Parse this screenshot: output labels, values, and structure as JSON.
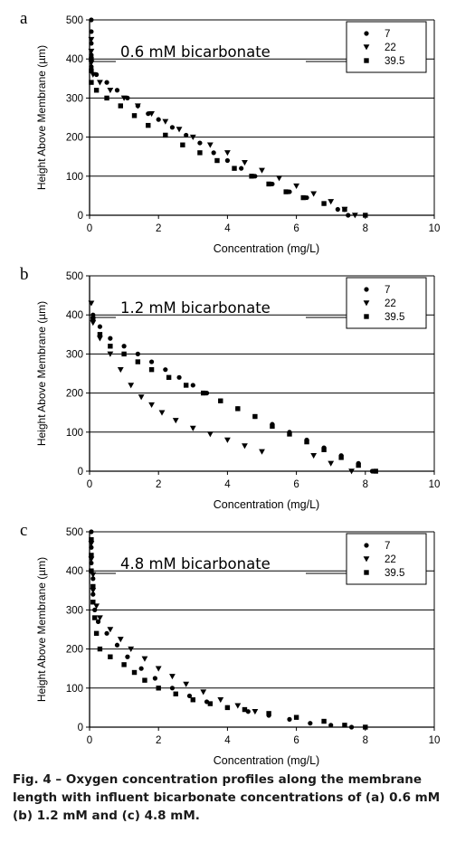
{
  "caption": {
    "label": "Fig. 4 – ",
    "text": "Oxygen concentration profiles along the membrane length with influent bicarbonate concentrations of (a) 0.6 mM (b) 1.2 mM and (c) 4.8 mM."
  },
  "chart_data": [
    {
      "type": "scatter",
      "panel": "a",
      "annotation": "0.6 mM bicarbonate",
      "xlabel": "Concentration (mg/L)",
      "ylabel": "Height Above Membrane (µm)",
      "xlim": [
        0,
        10
      ],
      "ylim": [
        0,
        500
      ],
      "xticks": [
        0,
        2,
        4,
        6,
        8,
        10
      ],
      "yticks": [
        0,
        100,
        200,
        300,
        400,
        500
      ],
      "grid": "horizontal",
      "legend_position": "top-right",
      "series": [
        {
          "name": "7",
          "marker": "circle",
          "points": [
            [
              0.05,
              500
            ],
            [
              0.05,
              470
            ],
            [
              0.05,
              440
            ],
            [
              0.05,
              410
            ],
            [
              0.05,
              380
            ],
            [
              0.2,
              360
            ],
            [
              0.5,
              340
            ],
            [
              0.8,
              320
            ],
            [
              1.1,
              300
            ],
            [
              1.4,
              280
            ],
            [
              1.7,
              260
            ],
            [
              2.0,
              245
            ],
            [
              2.4,
              225
            ],
            [
              2.8,
              205
            ],
            [
              3.2,
              185
            ],
            [
              3.6,
              160
            ],
            [
              4.0,
              140
            ],
            [
              4.4,
              120
            ],
            [
              4.8,
              100
            ],
            [
              5.3,
              80
            ],
            [
              5.8,
              60
            ],
            [
              6.3,
              45
            ],
            [
              6.8,
              30
            ],
            [
              7.2,
              15
            ],
            [
              7.5,
              0
            ]
          ]
        },
        {
          "name": "22",
          "marker": "triangle",
          "points": [
            [
              0.05,
              450
            ],
            [
              0.05,
              420
            ],
            [
              0.05,
              390
            ],
            [
              0.1,
              360
            ],
            [
              0.3,
              340
            ],
            [
              0.6,
              320
            ],
            [
              1.0,
              300
            ],
            [
              1.4,
              280
            ],
            [
              1.8,
              260
            ],
            [
              2.2,
              240
            ],
            [
              2.6,
              220
            ],
            [
              3.0,
              200
            ],
            [
              3.5,
              180
            ],
            [
              4.0,
              160
            ],
            [
              4.5,
              135
            ],
            [
              5.0,
              115
            ],
            [
              5.5,
              95
            ],
            [
              6.0,
              75
            ],
            [
              6.5,
              55
            ],
            [
              7.0,
              35
            ],
            [
              7.4,
              15
            ],
            [
              7.7,
              0
            ]
          ]
        },
        {
          "name": "39.5",
          "marker": "square",
          "points": [
            [
              0.05,
              400
            ],
            [
              0.05,
              370
            ],
            [
              0.05,
              340
            ],
            [
              0.2,
              320
            ],
            [
              0.5,
              300
            ],
            [
              0.9,
              280
            ],
            [
              1.3,
              255
            ],
            [
              1.7,
              230
            ],
            [
              2.2,
              205
            ],
            [
              2.7,
              180
            ],
            [
              3.2,
              160
            ],
            [
              3.7,
              140
            ],
            [
              4.2,
              120
            ],
            [
              4.7,
              100
            ],
            [
              5.2,
              80
            ],
            [
              5.7,
              60
            ],
            [
              6.2,
              45
            ],
            [
              6.8,
              30
            ],
            [
              7.4,
              15
            ],
            [
              8.0,
              0
            ]
          ]
        }
      ]
    },
    {
      "type": "scatter",
      "panel": "b",
      "annotation": "1.2 mM  bicarbonate",
      "xlabel": "Concentration (mg/L)",
      "ylabel": "Height Above Membrane (µm)",
      "xlim": [
        0,
        10
      ],
      "ylim": [
        0,
        500
      ],
      "xticks": [
        0,
        2,
        4,
        6,
        8,
        10
      ],
      "yticks": [
        0,
        100,
        200,
        300,
        400,
        500
      ],
      "grid": "horizontal",
      "legend_position": "top-right",
      "series": [
        {
          "name": "7",
          "marker": "circle",
          "points": [
            [
              0.1,
              400
            ],
            [
              0.3,
              370
            ],
            [
              0.6,
              340
            ],
            [
              1.0,
              320
            ],
            [
              1.4,
              300
            ],
            [
              1.8,
              280
            ],
            [
              2.2,
              260
            ],
            [
              2.6,
              240
            ],
            [
              3.0,
              220
            ],
            [
              3.4,
              200
            ],
            [
              3.8,
              180
            ],
            [
              4.3,
              160
            ],
            [
              4.8,
              140
            ],
            [
              5.3,
              120
            ],
            [
              5.8,
              100
            ],
            [
              6.3,
              80
            ],
            [
              6.8,
              60
            ],
            [
              7.3,
              40
            ],
            [
              7.8,
              20
            ],
            [
              8.2,
              0
            ]
          ]
        },
        {
          "name": "22",
          "marker": "triangle",
          "points": [
            [
              0.05,
              430
            ],
            [
              0.1,
              380
            ],
            [
              0.3,
              340
            ],
            [
              0.6,
              300
            ],
            [
              0.9,
              260
            ],
            [
              1.2,
              220
            ],
            [
              1.5,
              190
            ],
            [
              1.8,
              170
            ],
            [
              2.1,
              150
            ],
            [
              2.5,
              130
            ],
            [
              3.0,
              110
            ],
            [
              3.5,
              95
            ],
            [
              4.0,
              80
            ],
            [
              4.5,
              65
            ],
            [
              5.0,
              50
            ],
            [
              6.5,
              40
            ],
            [
              7.0,
              20
            ],
            [
              7.6,
              0
            ]
          ]
        },
        {
          "name": "39.5",
          "marker": "square",
          "points": [
            [
              0.1,
              390
            ],
            [
              0.3,
              350
            ],
            [
              0.6,
              320
            ],
            [
              1.0,
              300
            ],
            [
              1.4,
              280
            ],
            [
              1.8,
              260
            ],
            [
              2.3,
              240
            ],
            [
              2.8,
              220
            ],
            [
              3.3,
              200
            ],
            [
              3.8,
              180
            ],
            [
              4.3,
              160
            ],
            [
              4.8,
              140
            ],
            [
              5.3,
              115
            ],
            [
              5.8,
              95
            ],
            [
              6.3,
              75
            ],
            [
              6.8,
              55
            ],
            [
              7.3,
              35
            ],
            [
              7.8,
              15
            ],
            [
              8.3,
              0
            ]
          ]
        }
      ]
    },
    {
      "type": "scatter",
      "panel": "c",
      "annotation": "4.8 mM  bicarbonate",
      "xlabel": "Concentration (mg/L)",
      "ylabel": "Height Above Membrane (µm)",
      "xlim": [
        0,
        10
      ],
      "ylim": [
        0,
        500
      ],
      "xticks": [
        0,
        2,
        4,
        6,
        8,
        10
      ],
      "yticks": [
        0,
        100,
        200,
        300,
        400,
        500
      ],
      "grid": "horizontal",
      "legend_position": "top-right",
      "series": [
        {
          "name": "7",
          "marker": "circle",
          "points": [
            [
              0.05,
              500
            ],
            [
              0.05,
              460
            ],
            [
              0.05,
              420
            ],
            [
              0.1,
              380
            ],
            [
              0.1,
              340
            ],
            [
              0.15,
              300
            ],
            [
              0.25,
              270
            ],
            [
              0.5,
              240
            ],
            [
              0.8,
              210
            ],
            [
              1.1,
              180
            ],
            [
              1.5,
              150
            ],
            [
              1.9,
              125
            ],
            [
              2.4,
              100
            ],
            [
              2.9,
              80
            ],
            [
              3.4,
              65
            ],
            [
              4.0,
              50
            ],
            [
              4.6,
              40
            ],
            [
              5.2,
              30
            ],
            [
              5.8,
              20
            ],
            [
              6.4,
              10
            ],
            [
              7.0,
              5
            ],
            [
              7.6,
              0
            ]
          ]
        },
        {
          "name": "22",
          "marker": "triangle",
          "points": [
            [
              0.05,
              470
            ],
            [
              0.05,
              430
            ],
            [
              0.1,
              390
            ],
            [
              0.1,
              350
            ],
            [
              0.2,
              310
            ],
            [
              0.3,
              280
            ],
            [
              0.6,
              250
            ],
            [
              0.9,
              225
            ],
            [
              1.2,
              200
            ],
            [
              1.6,
              175
            ],
            [
              2.0,
              150
            ],
            [
              2.4,
              130
            ],
            [
              2.8,
              110
            ],
            [
              3.3,
              90
            ],
            [
              3.8,
              70
            ],
            [
              4.3,
              55
            ],
            [
              4.8,
              40
            ]
          ]
        },
        {
          "name": "39.5",
          "marker": "square",
          "points": [
            [
              0.05,
              480
            ],
            [
              0.05,
              440
            ],
            [
              0.05,
              400
            ],
            [
              0.1,
              360
            ],
            [
              0.1,
              320
            ],
            [
              0.15,
              280
            ],
            [
              0.2,
              240
            ],
            [
              0.3,
              200
            ],
            [
              0.6,
              180
            ],
            [
              1.0,
              160
            ],
            [
              1.3,
              140
            ],
            [
              1.6,
              120
            ],
            [
              2.0,
              100
            ],
            [
              2.5,
              85
            ],
            [
              3.0,
              70
            ],
            [
              3.5,
              60
            ],
            [
              4.0,
              50
            ],
            [
              4.5,
              45
            ],
            [
              5.2,
              35
            ],
            [
              6.0,
              25
            ],
            [
              6.8,
              15
            ],
            [
              7.4,
              5
            ],
            [
              8.0,
              0
            ]
          ]
        }
      ]
    }
  ]
}
